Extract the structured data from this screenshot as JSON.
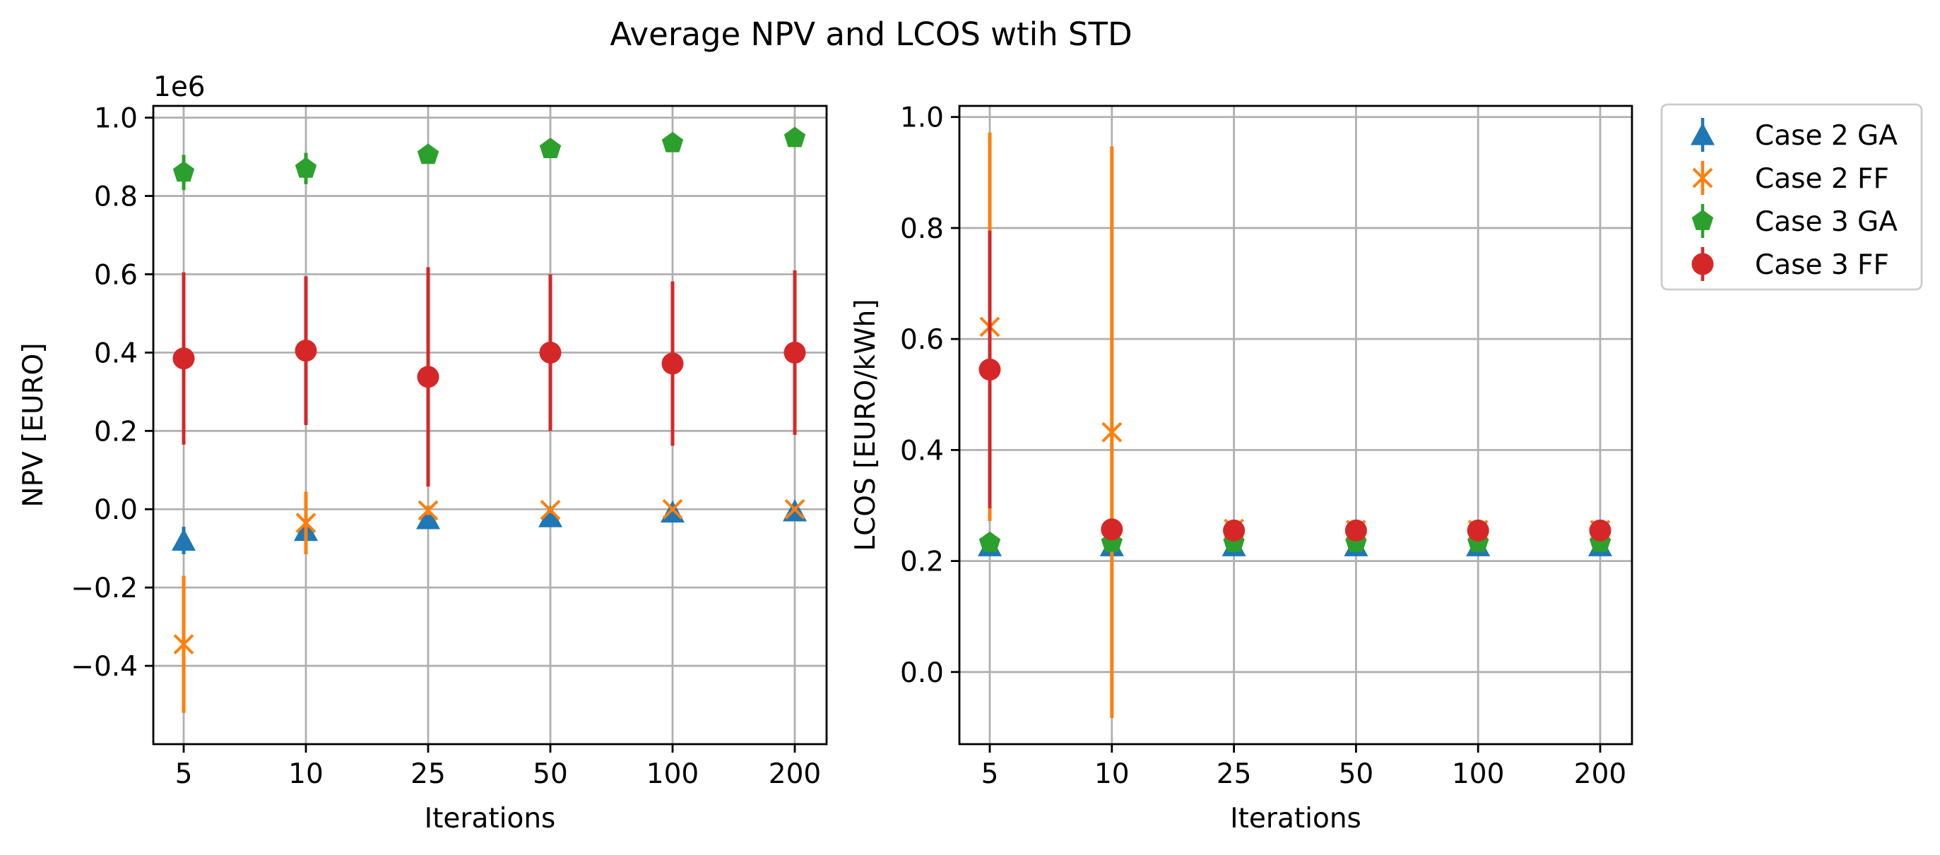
{
  "figure_title": "Average NPV and LCOS wtih STD",
  "colors": {
    "case2_ga": "#1f77b4",
    "case2_ff": "#ff7f0e",
    "case3_ga": "#2ca02c",
    "case3_ff": "#d62728"
  },
  "legend": [
    {
      "label": "Case 2 GA",
      "marker": "triangle-icon",
      "color_key": "case2_ga"
    },
    {
      "label": "Case 2 FF",
      "marker": "x-icon",
      "color_key": "case2_ff"
    },
    {
      "label": "Case 3 GA",
      "marker": "pentagon-icon",
      "color_key": "case3_ga"
    },
    {
      "label": "Case 3 FF",
      "marker": "circle-icon",
      "color_key": "case3_ff"
    }
  ],
  "chart_data": [
    {
      "id": "npv",
      "type": "scatter",
      "title": "",
      "xlabel": "Iterations",
      "ylabel": "NPV [EURO]",
      "y_offset_label": "1e6",
      "categories": [
        "5",
        "10",
        "25",
        "50",
        "100",
        "200"
      ],
      "ylim": [
        -0.6,
        1.03
      ],
      "yticks": [
        -0.4,
        -0.2,
        0.0,
        0.2,
        0.4,
        0.6,
        0.8,
        1.0
      ],
      "ytick_labels": [
        "−0.4",
        "−0.2",
        "0.0",
        "0.2",
        "0.4",
        "0.6",
        "0.8",
        "1.0"
      ],
      "series": [
        {
          "name": "Case 2 GA",
          "marker": "triangle",
          "color_key": "case2_ga",
          "values": [
            -0.08,
            -0.055,
            -0.025,
            -0.02,
            -0.008,
            -0.005
          ],
          "errors": [
            0.035,
            0.02,
            0.01,
            0.008,
            0.005,
            0.004
          ]
        },
        {
          "name": "Case 2 FF",
          "marker": "x",
          "color_key": "case2_ff",
          "values": [
            -0.345,
            -0.035,
            -0.003,
            -0.002,
            0.0,
            0.0
          ],
          "errors": [
            0.175,
            0.08,
            0.012,
            0.008,
            0.005,
            0.004
          ]
        },
        {
          "name": "Case 3 GA",
          "marker": "pentagon",
          "color_key": "case3_ga",
          "values": [
            0.86,
            0.87,
            0.905,
            0.92,
            0.935,
            0.948
          ],
          "errors": [
            0.045,
            0.04,
            0.02,
            0.015,
            0.008,
            0.005
          ]
        },
        {
          "name": "Case 3 FF",
          "marker": "circle",
          "color_key": "case3_ff",
          "values": [
            0.385,
            0.405,
            0.338,
            0.4,
            0.372,
            0.4
          ],
          "errors": [
            0.22,
            0.19,
            0.28,
            0.2,
            0.21,
            0.21
          ]
        }
      ]
    },
    {
      "id": "lcos",
      "type": "scatter",
      "title": "",
      "xlabel": "Iterations",
      "ylabel": "LCOS [EURO/kWh]",
      "categories": [
        "5",
        "10",
        "25",
        "50",
        "100",
        "200"
      ],
      "ylim": [
        -0.13,
        1.02
      ],
      "yticks": [
        0.0,
        0.2,
        0.4,
        0.6,
        0.8,
        1.0
      ],
      "ytick_labels": [
        "0.0",
        "0.2",
        "0.4",
        "0.6",
        "0.8",
        "1.0"
      ],
      "series": [
        {
          "name": "Case 2 GA",
          "marker": "triangle",
          "color_key": "case2_ga",
          "values": [
            0.227,
            0.227,
            0.227,
            0.227,
            0.227,
            0.227
          ],
          "errors": [
            0.005,
            0.004,
            0.003,
            0.003,
            0.002,
            0.002
          ]
        },
        {
          "name": "Case 2 FF",
          "marker": "x",
          "color_key": "case2_ff",
          "values": [
            0.622,
            0.432,
            0.258,
            0.256,
            0.256,
            0.256
          ],
          "errors": [
            0.35,
            0.515,
            0.012,
            0.008,
            0.005,
            0.005
          ]
        },
        {
          "name": "Case 3 GA",
          "marker": "pentagon",
          "color_key": "case3_ga",
          "values": [
            0.233,
            0.233,
            0.233,
            0.233,
            0.233,
            0.233
          ],
          "errors": [
            0.004,
            0.004,
            0.003,
            0.003,
            0.002,
            0.002
          ]
        },
        {
          "name": "Case 3 FF",
          "marker": "circle",
          "color_key": "case3_ff",
          "values": [
            0.545,
            0.257,
            0.255,
            0.255,
            0.255,
            0.255
          ],
          "errors": [
            0.25,
            0.01,
            0.008,
            0.006,
            0.005,
            0.005
          ]
        }
      ]
    }
  ]
}
